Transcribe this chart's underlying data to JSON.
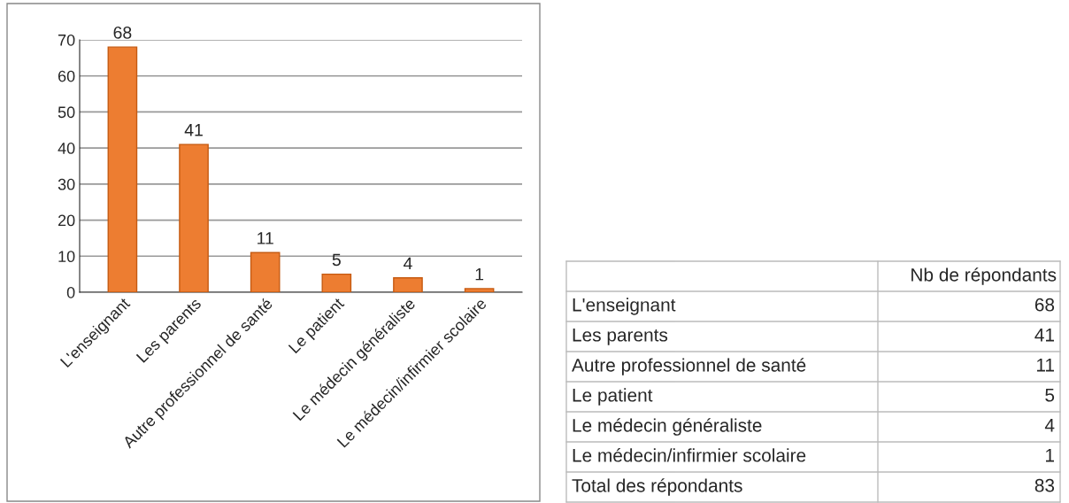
{
  "chart_data": {
    "type": "bar",
    "categories": [
      "L'enseignant",
      "Les parents",
      "Autre professionnel de santé",
      "Le patient",
      "Le médecin généraliste",
      "Le médecin/infirmier scolaire"
    ],
    "values": [
      68,
      41,
      11,
      5,
      4,
      1
    ],
    "color": "#ed7d31",
    "ylim": [
      0,
      70
    ],
    "yticks": [
      0,
      10,
      20,
      30,
      40,
      50,
      60,
      70
    ],
    "grid": "y",
    "data_labels": true,
    "annotations": [
      "Nb de répondants",
      "68",
      "41",
      "11",
      "5",
      "4",
      "1",
      "Total des répondants",
      "83"
    ]
  }
}
